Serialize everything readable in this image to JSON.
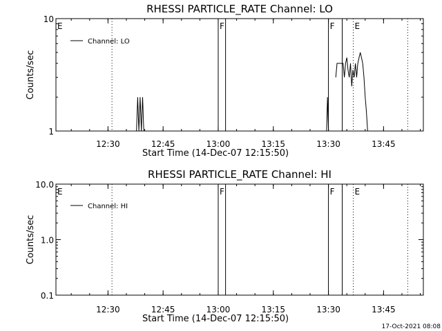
{
  "timestamp": "17-Oct-2021 08:08",
  "chart_data": [
    {
      "type": "line",
      "title": "RHESSI PARTICLE_RATE Channel: LO",
      "xlabel": "Start Time (14-Dec-07 12:15:50)",
      "ylabel": "Counts/sec",
      "yscale": "log",
      "ylim": [
        1,
        10
      ],
      "xlim": [
        "12:15:50",
        "13:55:50"
      ],
      "xticks": [
        "12:30",
        "12:45",
        "13:00",
        "13:15",
        "13:30",
        "13:45"
      ],
      "yticks": [
        "1",
        "10"
      ],
      "legend": {
        "labels": [
          "Channel: LO"
        ],
        "placement": "top-left"
      },
      "grid": false,
      "markers": [
        {
          "label": "E",
          "time": "12:15:50",
          "style": "dotted"
        },
        {
          "time": "12:31:05",
          "style": "dotted"
        },
        {
          "label": "F",
          "time": "13:00:00",
          "style": "solid"
        },
        {
          "time": "13:02:00",
          "style": "solid"
        },
        {
          "label": "F",
          "time": "13:30:00",
          "style": "solid"
        },
        {
          "time": "13:33:45",
          "style": "solid"
        },
        {
          "label": "E",
          "time": "13:36:45",
          "style": "dotted"
        },
        {
          "time": "13:51:35",
          "style": "dotted"
        }
      ],
      "series": [
        {
          "name": "Channel: LO",
          "segments": [
            [
              {
                "x": "12:37:45",
                "y": 1.0
              },
              {
                "x": "12:38:05",
                "y": 2.0
              },
              {
                "x": "12:38:25",
                "y": 1.0
              },
              {
                "x": "12:38:45",
                "y": 2.0
              },
              {
                "x": "12:39:05",
                "y": 1.0
              },
              {
                "x": "12:39:25",
                "y": 2.0
              },
              {
                "x": "12:39:45",
                "y": 1.0
              }
            ],
            [
              {
                "x": "13:29:30",
                "y": 1.0
              },
              {
                "x": "13:29:45",
                "y": 2.0
              },
              {
                "x": "13:30:00",
                "y": 1.0
              }
            ],
            [
              {
                "x": "13:32:00",
                "y": 3.0
              },
              {
                "x": "13:32:20",
                "y": 4.0
              },
              {
                "x": "13:33:00",
                "y": 4.0
              },
              {
                "x": "13:33:45",
                "y": 4.0
              },
              {
                "x": "13:34:00",
                "y": 4.0
              },
              {
                "x": "13:34:20",
                "y": 3.0
              },
              {
                "x": "13:34:40",
                "y": 4.0
              },
              {
                "x": "13:35:00",
                "y": 4.5
              },
              {
                "x": "13:35:20",
                "y": 3.5
              },
              {
                "x": "13:35:40",
                "y": 3.0
              },
              {
                "x": "13:36:00",
                "y": 4.0
              },
              {
                "x": "13:36:20",
                "y": 2.5
              },
              {
                "x": "13:36:40",
                "y": 3.5
              },
              {
                "x": "13:37:00",
                "y": 3.0
              },
              {
                "x": "13:37:20",
                "y": 4.0
              },
              {
                "x": "13:37:40",
                "y": 3.0
              },
              {
                "x": "13:38:00",
                "y": 4.0
              },
              {
                "x": "13:38:20",
                "y": 4.5
              },
              {
                "x": "13:38:40",
                "y": 5.0
              },
              {
                "x": "13:39:00",
                "y": 4.5
              },
              {
                "x": "13:39:20",
                "y": 4.0
              },
              {
                "x": "13:39:40",
                "y": 3.0
              },
              {
                "x": "13:40:00",
                "y": 2.0
              },
              {
                "x": "13:40:20",
                "y": 1.5
              },
              {
                "x": "13:40:40",
                "y": 1.0
              }
            ]
          ]
        }
      ]
    },
    {
      "type": "line",
      "title": "RHESSI PARTICLE_RATE Channel: HI",
      "xlabel": "Start Time (14-Dec-07 12:15:50)",
      "ylabel": "Counts/sec",
      "yscale": "log",
      "ylim": [
        0.1,
        10.0
      ],
      "xlim": [
        "12:15:50",
        "13:55:50"
      ],
      "xticks": [
        "12:30",
        "12:45",
        "13:00",
        "13:15",
        "13:30",
        "13:45"
      ],
      "yticks": [
        "0.1",
        "1.0",
        "10.0"
      ],
      "legend": {
        "labels": [
          "Channel: HI"
        ],
        "placement": "top-left"
      },
      "grid": false,
      "markers": [
        {
          "label": "E",
          "time": "12:15:50",
          "style": "dotted"
        },
        {
          "time": "12:31:05",
          "style": "dotted"
        },
        {
          "label": "F",
          "time": "13:00:00",
          "style": "solid"
        },
        {
          "time": "13:02:00",
          "style": "solid"
        },
        {
          "label": "F",
          "time": "13:30:00",
          "style": "solid"
        },
        {
          "time": "13:33:45",
          "style": "solid"
        },
        {
          "label": "E",
          "time": "13:36:45",
          "style": "dotted"
        },
        {
          "time": "13:51:35",
          "style": "dotted"
        }
      ],
      "series": [
        {
          "name": "Channel: HI",
          "segments": []
        }
      ]
    }
  ]
}
